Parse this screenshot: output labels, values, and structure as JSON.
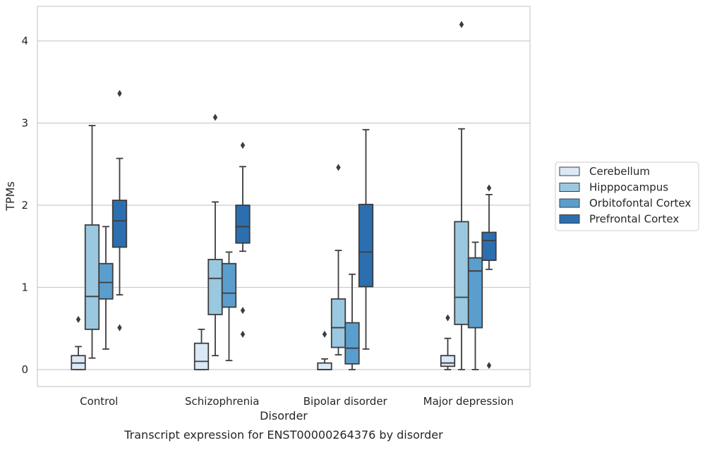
{
  "chart_data": {
    "type": "boxplot",
    "caption": "Transcript expression for ENST00000264376 by disorder",
    "xlabel": "Disorder",
    "ylabel": "TPMs",
    "ylim": [
      -0.2,
      4.3
    ],
    "yticks": [
      0,
      1,
      2,
      3,
      4
    ],
    "grid": "horizontal",
    "legend_position": "right",
    "categories": [
      "Control",
      "Schizophrenia",
      "Bipolar disorder",
      "Major depression"
    ],
    "series": [
      {
        "name": "Cerebellum",
        "color": "#dbe9f6",
        "boxes": [
          {
            "whislo": 0.0,
            "q1": 0.0,
            "med": 0.08,
            "q3": 0.17,
            "whishi": 0.28,
            "fliers": [
              0.61
            ]
          },
          {
            "whislo": 0.0,
            "q1": 0.0,
            "med": 0.1,
            "q3": 0.32,
            "whishi": 0.49,
            "fliers": []
          },
          {
            "whislo": 0.0,
            "q1": 0.0,
            "med": 0.0,
            "q3": 0.08,
            "whishi": 0.13,
            "fliers": [
              0.43
            ]
          },
          {
            "whislo": 0.0,
            "q1": 0.04,
            "med": 0.08,
            "q3": 0.17,
            "whishi": 0.38,
            "fliers": [
              0.63
            ]
          }
        ]
      },
      {
        "name": "Hipppocampus",
        "color": "#9ac8e0",
        "boxes": [
          {
            "whislo": 0.14,
            "q1": 0.49,
            "med": 0.89,
            "q3": 1.76,
            "whishi": 2.97,
            "fliers": []
          },
          {
            "whislo": 0.17,
            "q1": 0.67,
            "med": 1.11,
            "q3": 1.34,
            "whishi": 2.04,
            "fliers": [
              3.07
            ]
          },
          {
            "whislo": 0.18,
            "q1": 0.27,
            "med": 0.51,
            "q3": 0.86,
            "whishi": 1.45,
            "fliers": [
              2.46
            ]
          },
          {
            "whislo": 0.0,
            "q1": 0.55,
            "med": 0.88,
            "q3": 1.8,
            "whishi": 2.93,
            "fliers": [
              4.2
            ]
          }
        ]
      },
      {
        "name": "Orbitofontal Cortex",
        "color": "#5a9ecd",
        "boxes": [
          {
            "whislo": 0.25,
            "q1": 0.86,
            "med": 1.06,
            "q3": 1.29,
            "whishi": 1.74,
            "fliers": []
          },
          {
            "whislo": 0.11,
            "q1": 0.76,
            "med": 0.93,
            "q3": 1.29,
            "whishi": 1.43,
            "fliers": []
          },
          {
            "whislo": 0.0,
            "q1": 0.07,
            "med": 0.26,
            "q3": 0.57,
            "whishi": 1.16,
            "fliers": []
          },
          {
            "whislo": 0.0,
            "q1": 0.51,
            "med": 1.2,
            "q3": 1.36,
            "whishi": 1.55,
            "fliers": []
          }
        ]
      },
      {
        "name": "Prefrontal Cortex",
        "color": "#2c6fb0",
        "boxes": [
          {
            "whislo": 0.91,
            "q1": 1.49,
            "med": 1.81,
            "q3": 2.06,
            "whishi": 2.57,
            "fliers": [
              3.36,
              0.51
            ]
          },
          {
            "whislo": 1.44,
            "q1": 1.54,
            "med": 1.74,
            "q3": 2.0,
            "whishi": 2.47,
            "fliers": [
              2.73,
              0.72,
              0.43
            ]
          },
          {
            "whislo": 0.25,
            "q1": 1.01,
            "med": 1.43,
            "q3": 2.01,
            "whishi": 2.92,
            "fliers": []
          },
          {
            "whislo": 1.22,
            "q1": 1.33,
            "med": 1.57,
            "q3": 1.67,
            "whishi": 2.13,
            "fliers": [
              2.21,
              0.05
            ]
          }
        ]
      }
    ]
  }
}
